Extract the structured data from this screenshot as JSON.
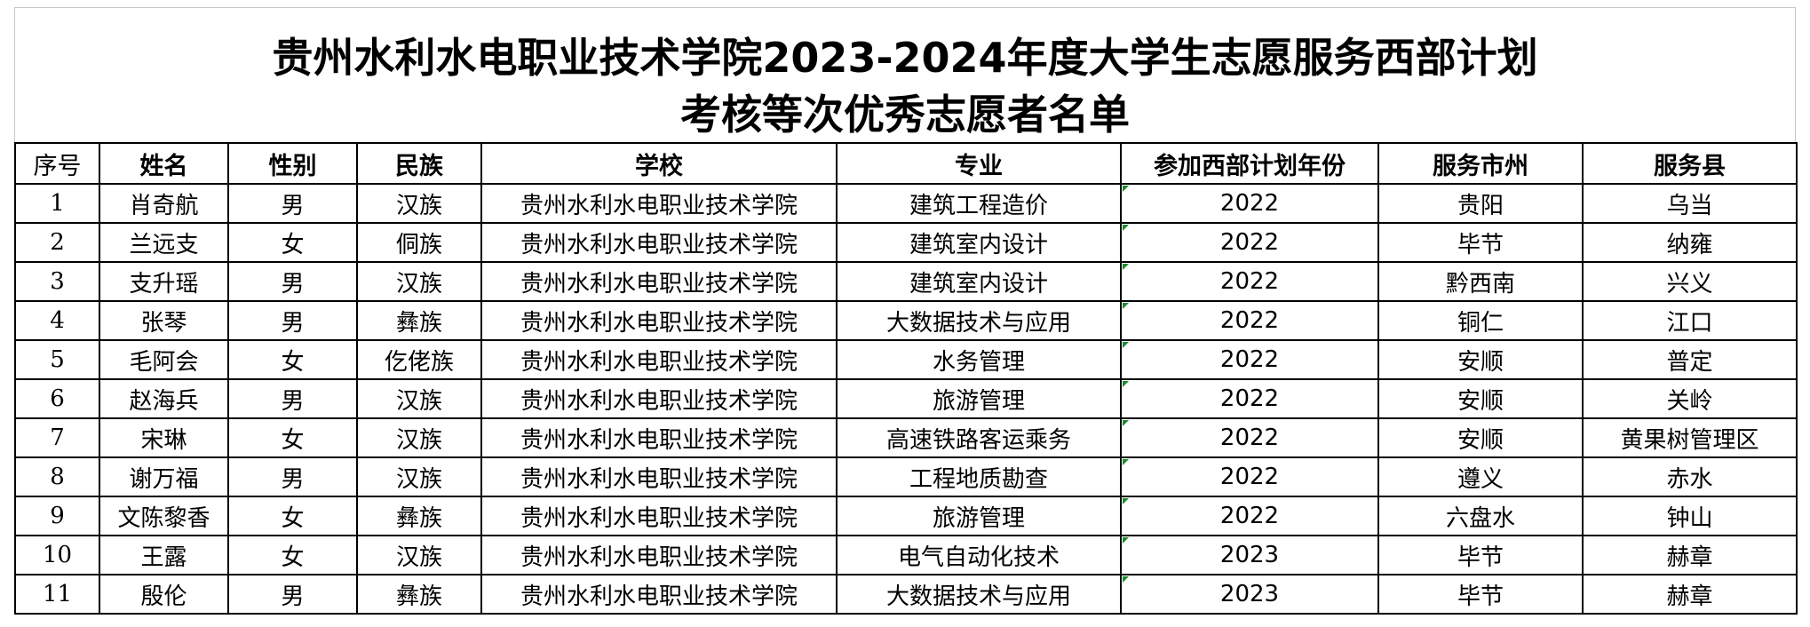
{
  "title": {
    "line1": "贵州水利水电职业技术学院2023-2024年度大学生志愿服务西部计划",
    "line2": "考核等次优秀志愿者名单"
  },
  "columns": [
    "序号",
    "姓名",
    "性别",
    "民族",
    "学校",
    "专业",
    "参加西部计划年份",
    "服务市州",
    "服务县"
  ],
  "rows": [
    [
      "1",
      "肖奇航",
      "男",
      "汉族",
      "贵州水利水电职业技术学院",
      "建筑工程造价",
      "2022",
      "贵阳",
      "乌当"
    ],
    [
      "2",
      "兰远支",
      "女",
      "侗族",
      "贵州水利水电职业技术学院",
      "建筑室内设计",
      "2022",
      "毕节",
      "纳雍"
    ],
    [
      "3",
      "支升瑶",
      "男",
      "汉族",
      "贵州水利水电职业技术学院",
      "建筑室内设计",
      "2022",
      "黔西南",
      "兴义"
    ],
    [
      "4",
      "张琴",
      "男",
      "彝族",
      "贵州水利水电职业技术学院",
      "大数据技术与应用",
      "2022",
      "铜仁",
      "江口"
    ],
    [
      "5",
      "毛阿会",
      "女",
      "仡佬族",
      "贵州水利水电职业技术学院",
      "水务管理",
      "2022",
      "安顺",
      "普定"
    ],
    [
      "6",
      "赵海兵",
      "男",
      "汉族",
      "贵州水利水电职业技术学院",
      "旅游管理",
      "2022",
      "安顺",
      "关岭"
    ],
    [
      "7",
      "宋琳",
      "女",
      "汉族",
      "贵州水利水电职业技术学院",
      "高速铁路客运乘务",
      "2022",
      "安顺",
      "黄果树管理区"
    ],
    [
      "8",
      "谢万福",
      "男",
      "汉族",
      "贵州水利水电职业技术学院",
      "工程地质勘查",
      "2022",
      "遵义",
      "赤水"
    ],
    [
      "9",
      "文陈黎香",
      "女",
      "彝族",
      "贵州水利水电职业技术学院",
      "旅游管理",
      "2022",
      "六盘水",
      "钟山"
    ],
    [
      "10",
      "王露",
      "女",
      "汉族",
      "贵州水利水电职业技术学院",
      "电气自动化技术",
      "2023",
      "毕节",
      "赫章"
    ],
    [
      "11",
      "殷伦",
      "男",
      "彝族",
      "贵州水利水电职业技术学院",
      "大数据技术与应用",
      "2023",
      "毕节",
      "赫章"
    ]
  ]
}
